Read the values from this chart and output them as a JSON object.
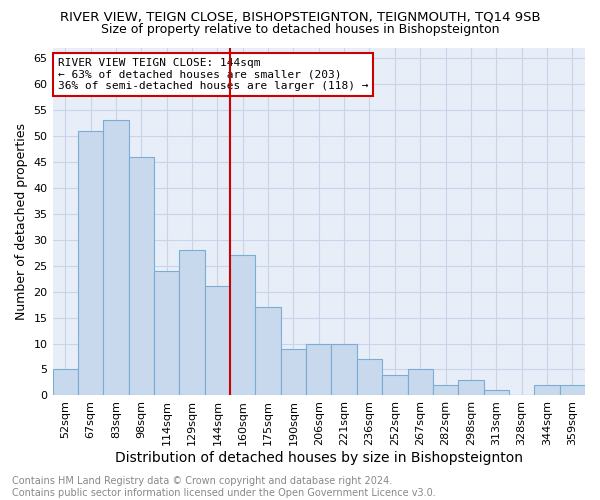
{
  "title": "RIVER VIEW, TEIGN CLOSE, BISHOPSTEIGNTON, TEIGNMOUTH, TQ14 9SB",
  "subtitle": "Size of property relative to detached houses in Bishopsteignton",
  "xlabel": "Distribution of detached houses by size in Bishopsteignton",
  "ylabel": "Number of detached properties",
  "categories": [
    "52sqm",
    "67sqm",
    "83sqm",
    "98sqm",
    "114sqm",
    "129sqm",
    "144sqm",
    "160sqm",
    "175sqm",
    "190sqm",
    "206sqm",
    "221sqm",
    "236sqm",
    "252sqm",
    "267sqm",
    "282sqm",
    "298sqm",
    "313sqm",
    "328sqm",
    "344sqm",
    "359sqm"
  ],
  "values": [
    5,
    51,
    53,
    46,
    24,
    28,
    21,
    27,
    17,
    9,
    10,
    10,
    7,
    4,
    5,
    2,
    3,
    1,
    0,
    2,
    2
  ],
  "bar_color": "#c8d9ee",
  "bar_edge_color": "#7aadd4",
  "vline_index": 6,
  "vline_color": "#cc0000",
  "annotation_text": "RIVER VIEW TEIGN CLOSE: 144sqm\n← 63% of detached houses are smaller (203)\n36% of semi-detached houses are larger (118) →",
  "annotation_box_color": "#ffffff",
  "annotation_box_edge": "#cc0000",
  "ylim": [
    0,
    67
  ],
  "yticks": [
    0,
    5,
    10,
    15,
    20,
    25,
    30,
    35,
    40,
    45,
    50,
    55,
    60,
    65
  ],
  "grid_color": "#c8d4e8",
  "bg_color": "#e8eef8",
  "footer_text": "Contains HM Land Registry data © Crown copyright and database right 2024.\nContains public sector information licensed under the Open Government Licence v3.0.",
  "title_fontsize": 9.5,
  "subtitle_fontsize": 9,
  "xlabel_fontsize": 10,
  "ylabel_fontsize": 9,
  "tick_fontsize": 8,
  "annotation_fontsize": 8,
  "footer_fontsize": 7
}
